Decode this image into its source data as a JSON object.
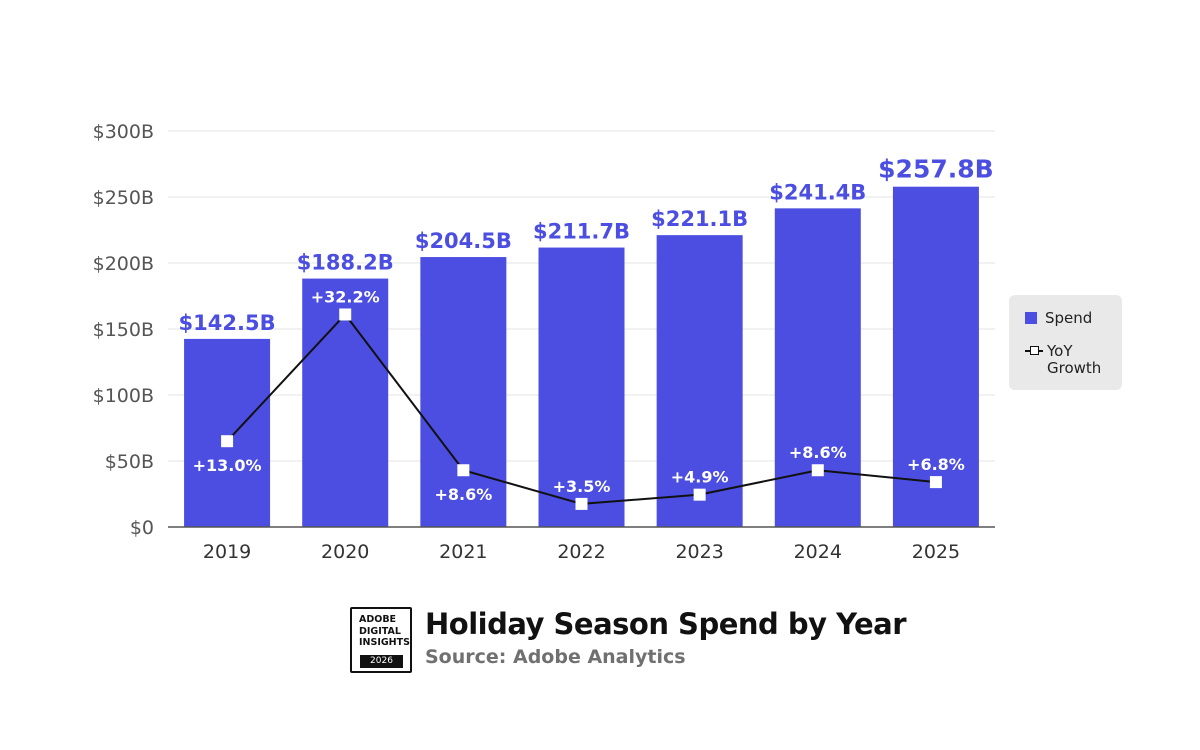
{
  "chart_data": {
    "type": "bar",
    "title": "Holiday Season Spend by Year",
    "subtitle": "Source: Adobe Analytics",
    "categories": [
      "2019",
      "2020",
      "2021",
      "2022",
      "2023",
      "2024",
      "2025"
    ],
    "y_ticks": [
      "$0",
      "$50B",
      "$100B",
      "$150B",
      "$200B",
      "$250B",
      "$300B"
    ],
    "ylim": [
      0,
      300
    ],
    "ylim_secondary": [
      0,
      60
    ],
    "grid": true,
    "legend_position": "right",
    "series": [
      {
        "name": "Spend",
        "type": "bar",
        "color": "#4b4ee0",
        "values": [
          142.5,
          188.2,
          204.5,
          211.7,
          221.1,
          241.4,
          257.8
        ],
        "labels": [
          "$142.5B",
          "$188.2B",
          "$204.5B",
          "$211.7B",
          "$221.1B",
          "$241.4B",
          "$257.8B"
        ]
      },
      {
        "name": "YoY Growth",
        "type": "line",
        "color": "#111111",
        "values": [
          13.0,
          32.2,
          8.6,
          3.5,
          4.9,
          8.6,
          6.8
        ],
        "labels": [
          "+13.0%",
          "+32.2%",
          "+8.6%",
          "+3.5%",
          "+4.9%",
          "+8.6%",
          "+6.8%"
        ]
      }
    ]
  },
  "legend": {
    "spend": "Spend",
    "growth_line1": "YoY",
    "growth_line2": "Growth"
  },
  "footer": {
    "badge_lines": [
      "ADOBE",
      "DIGITAL",
      "INSIGHTS"
    ],
    "badge_year": "2026",
    "title": "Holiday Season Spend by Year",
    "source": "Source: Adobe Analytics"
  }
}
